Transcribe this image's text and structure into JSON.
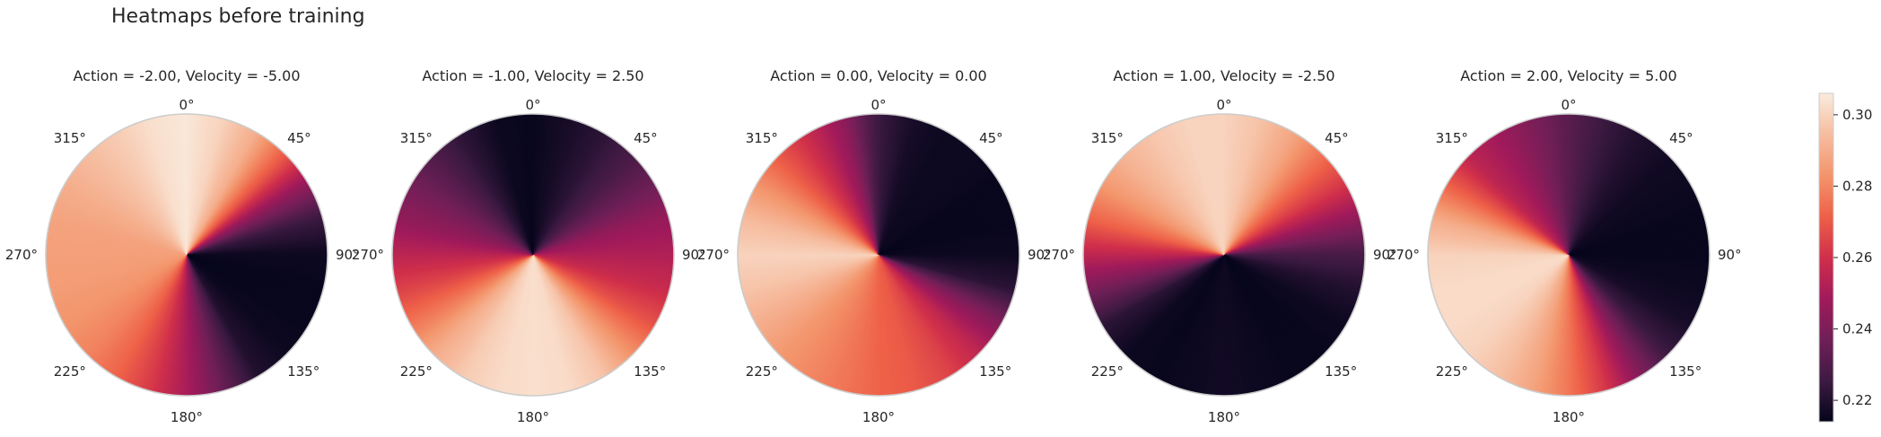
{
  "figure": {
    "title": "Heatmaps before training"
  },
  "chart_data": {
    "type": "heatmap",
    "subtype": "polar",
    "title": "Heatmaps before training",
    "angular_tick_labels": [
      "0°",
      "45°",
      "90°",
      "135°",
      "180°",
      "225°",
      "270°",
      "315°"
    ],
    "angle_zero": "top",
    "angle_direction": "clockwise",
    "grid": false,
    "colorbar": {
      "placement": "right",
      "range": [
        0.214,
        0.306
      ],
      "ticks": [
        0.22,
        0.24,
        0.26,
        0.28,
        0.3
      ],
      "tick_labels": [
        "0.22",
        "0.24",
        "0.26",
        "0.28",
        "0.30"
      ],
      "colormap": "rocket",
      "stops": [
        "#03051a",
        "#3d1a42",
        "#701f57",
        "#a11a5b",
        "#d02f4a",
        "#ee6048",
        "#f3956c",
        "#f6bda0",
        "#faebdd"
      ]
    },
    "panels": [
      {
        "title": "Action = -2.00, Velocity = -5.00",
        "angles_deg": [
          0,
          15,
          30,
          45,
          60,
          75,
          90,
          105,
          120,
          135,
          150,
          165,
          180,
          195,
          210,
          225,
          240,
          255,
          270,
          285,
          300,
          315,
          330,
          345
        ],
        "values": [
          0.305,
          0.3,
          0.29,
          0.27,
          0.245,
          0.225,
          0.216,
          0.215,
          0.215,
          0.216,
          0.22,
          0.235,
          0.25,
          0.262,
          0.272,
          0.279,
          0.283,
          0.285,
          0.286,
          0.287,
          0.29,
          0.294,
          0.298,
          0.303
        ]
      },
      {
        "title": "Action = -1.00, Velocity = 2.50",
        "angles_deg": [
          0,
          15,
          30,
          45,
          60,
          75,
          90,
          105,
          120,
          135,
          150,
          165,
          180,
          195,
          210,
          225,
          240,
          255,
          270,
          285,
          300,
          315,
          330,
          345
        ],
        "values": [
          0.215,
          0.218,
          0.222,
          0.228,
          0.236,
          0.246,
          0.252,
          0.258,
          0.268,
          0.282,
          0.296,
          0.302,
          0.303,
          0.302,
          0.298,
          0.29,
          0.277,
          0.265,
          0.255,
          0.245,
          0.238,
          0.23,
          0.222,
          0.216
        ]
      },
      {
        "title": "Action = 0.00, Velocity = 0.00",
        "angles_deg": [
          0,
          15,
          30,
          45,
          60,
          75,
          90,
          105,
          120,
          135,
          150,
          165,
          180,
          195,
          210,
          225,
          240,
          255,
          270,
          285,
          300,
          315,
          330,
          345
        ],
        "values": [
          0.225,
          0.218,
          0.216,
          0.216,
          0.215,
          0.215,
          0.216,
          0.222,
          0.242,
          0.256,
          0.265,
          0.27,
          0.272,
          0.276,
          0.28,
          0.284,
          0.29,
          0.296,
          0.3,
          0.294,
          0.283,
          0.27,
          0.258,
          0.245
        ]
      },
      {
        "title": "Action = 1.00, Velocity = -2.50",
        "angles_deg": [
          0,
          15,
          30,
          45,
          60,
          75,
          90,
          105,
          120,
          135,
          150,
          165,
          180,
          195,
          210,
          225,
          240,
          255,
          270,
          285,
          300,
          315,
          330,
          345
        ],
        "values": [
          0.3,
          0.296,
          0.288,
          0.275,
          0.262,
          0.245,
          0.228,
          0.22,
          0.216,
          0.215,
          0.215,
          0.216,
          0.217,
          0.216,
          0.215,
          0.216,
          0.222,
          0.238,
          0.255,
          0.272,
          0.284,
          0.292,
          0.297,
          0.3
        ]
      },
      {
        "title": "Action = 2.00, Velocity = 5.00",
        "angles_deg": [
          0,
          15,
          30,
          45,
          60,
          75,
          90,
          105,
          120,
          135,
          150,
          165,
          180,
          195,
          210,
          225,
          240,
          255,
          270,
          285,
          300,
          315,
          330,
          345
        ],
        "values": [
          0.232,
          0.225,
          0.22,
          0.217,
          0.216,
          0.215,
          0.215,
          0.216,
          0.218,
          0.225,
          0.242,
          0.262,
          0.276,
          0.287,
          0.295,
          0.3,
          0.302,
          0.302,
          0.3,
          0.29,
          0.272,
          0.255,
          0.248,
          0.24
        ]
      }
    ]
  }
}
